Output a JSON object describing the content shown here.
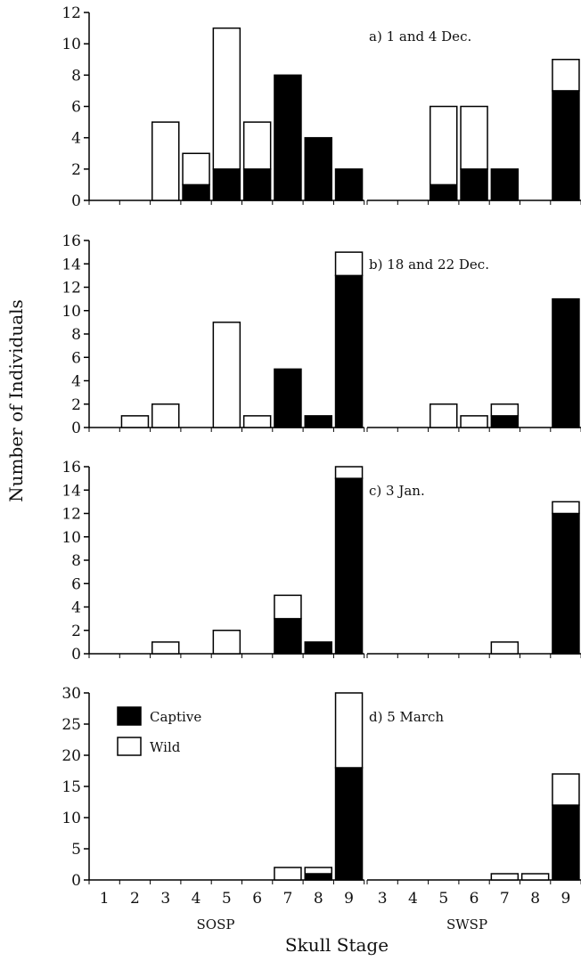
{
  "chart_data": {
    "type": "bar",
    "stacked": true,
    "ylabel": "Number of Individuals",
    "xlabel": "Skull Stage",
    "groups": [
      {
        "label": "SOSP",
        "categories": [
          "1",
          "2",
          "3",
          "4",
          "5",
          "6",
          "7",
          "8",
          "9"
        ]
      },
      {
        "label": "SWSP",
        "categories": [
          "3",
          "4",
          "5",
          "6",
          "7",
          "8",
          "9"
        ]
      }
    ],
    "legend": {
      "placement": "top-left of panel d",
      "entries": [
        {
          "name": "Captive",
          "color": "#000000"
        },
        {
          "name": "Wild",
          "color": "#ffffff"
        }
      ]
    },
    "series_colors": {
      "Captive": "#000000",
      "Wild": "#ffffff"
    },
    "panels": [
      {
        "label": "a) 1 and 4 Dec.",
        "ylim": [
          0,
          12
        ],
        "yticks": [
          0,
          2,
          4,
          6,
          8,
          10,
          12
        ],
        "SOSP": {
          "Captive": [
            0,
            0,
            0,
            1,
            2,
            2,
            8,
            4,
            2
          ],
          "Wild": [
            0,
            0,
            5,
            2,
            9,
            3,
            0,
            0,
            0
          ]
        },
        "SWSP": {
          "Captive": [
            0,
            0,
            1,
            2,
            2,
            0,
            7
          ],
          "Wild": [
            0,
            0,
            5,
            4,
            0,
            0,
            2
          ]
        }
      },
      {
        "label": "b) 18 and 22 Dec.",
        "ylim": [
          0,
          16
        ],
        "yticks": [
          0,
          2,
          4,
          6,
          8,
          10,
          12,
          14,
          16
        ],
        "SOSP": {
          "Captive": [
            0,
            0,
            0,
            0,
            0,
            0,
            5,
            1,
            13
          ],
          "Wild": [
            0,
            1,
            2,
            0,
            9,
            1,
            0,
            0,
            2
          ]
        },
        "SWSP": {
          "Captive": [
            0,
            0,
            0,
            0,
            1,
            0,
            11
          ],
          "Wild": [
            0,
            0,
            2,
            1,
            1,
            0,
            0
          ]
        }
      },
      {
        "label": "c) 3 Jan.",
        "ylim": [
          0,
          16
        ],
        "yticks": [
          0,
          2,
          4,
          6,
          8,
          10,
          12,
          14,
          16
        ],
        "SOSP": {
          "Captive": [
            0,
            0,
            0,
            0,
            0,
            0,
            3,
            1,
            15
          ],
          "Wild": [
            0,
            0,
            1,
            0,
            2,
            0,
            2,
            0,
            1
          ]
        },
        "SWSP": {
          "Captive": [
            0,
            0,
            0,
            0,
            0,
            0,
            12
          ],
          "Wild": [
            0,
            0,
            0,
            0,
            1,
            0,
            1
          ]
        }
      },
      {
        "label": "d) 5 March",
        "ylim": [
          0,
          30
        ],
        "yticks": [
          0,
          5,
          10,
          15,
          20,
          25,
          30
        ],
        "SOSP": {
          "Captive": [
            0,
            0,
            0,
            0,
            0,
            0,
            0,
            1,
            18
          ],
          "Wild": [
            0,
            0,
            0,
            0,
            0,
            0,
            2,
            1,
            12
          ]
        },
        "SWSP": {
          "Captive": [
            0,
            0,
            0,
            0,
            0,
            0,
            12
          ],
          "Wild": [
            0,
            0,
            0,
            0,
            1,
            1,
            5
          ]
        }
      }
    ]
  }
}
